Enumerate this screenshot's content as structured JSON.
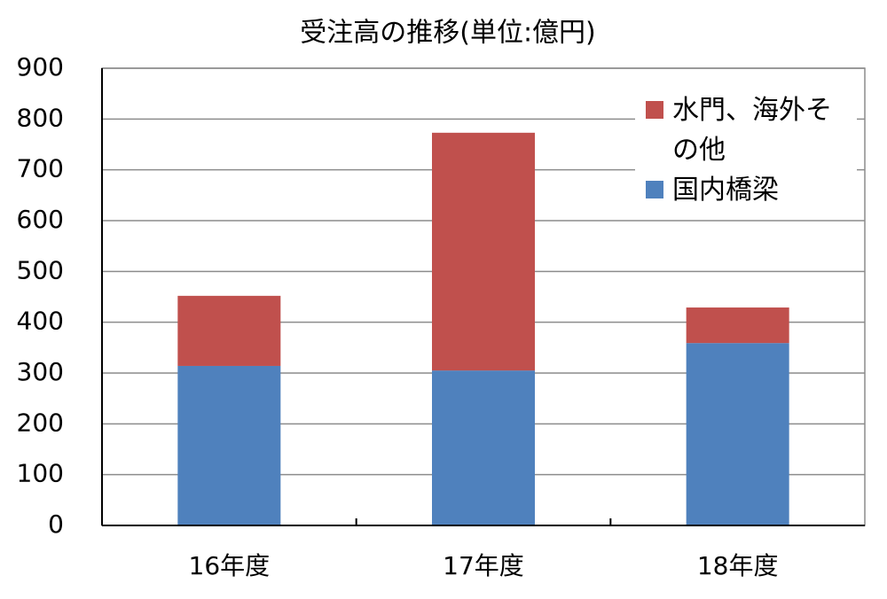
{
  "chart_data": {
    "type": "stacked_bar",
    "title": "受注高の推移(単位:億円)",
    "categories": [
      "16年度",
      "17年度",
      "18年度"
    ],
    "series": [
      {
        "name": "国内橋梁",
        "color": "#4f81bd",
        "values": [
          314,
          305,
          359
        ]
      },
      {
        "name": "水門、海外その他",
        "color": "#c0504d",
        "values": [
          138,
          468,
          70
        ]
      }
    ],
    "ylim": [
      0,
      900
    ],
    "yticks": [
      0,
      100,
      200,
      300,
      400,
      500,
      600,
      700,
      800,
      900
    ],
    "grid": true
  }
}
